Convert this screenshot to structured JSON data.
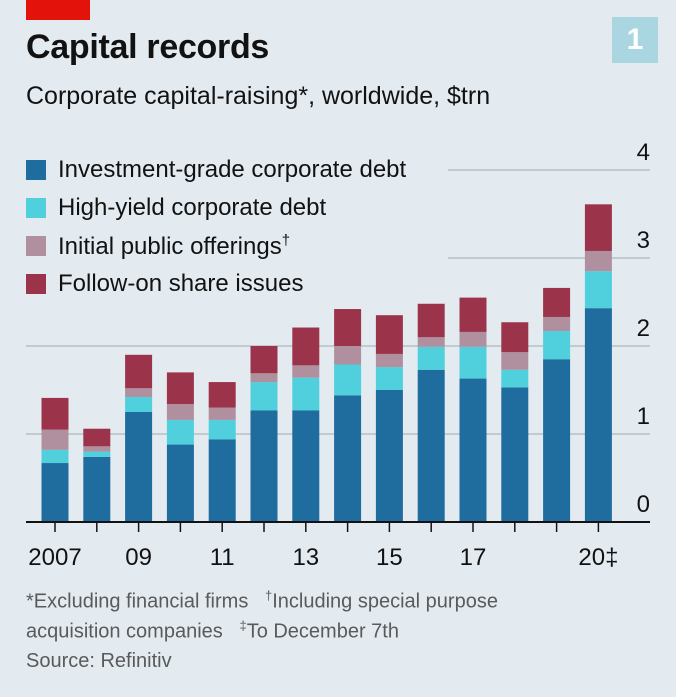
{
  "header": {
    "title": "Capital records",
    "subtitle": "Corporate capital-raising*, worldwide, $trn",
    "badge": "1"
  },
  "legend": [
    {
      "label": "Investment-grade corporate debt",
      "dagger": ""
    },
    {
      "label": "High-yield corporate debt",
      "dagger": ""
    },
    {
      "label": "Initial public offerings",
      "dagger": "†"
    },
    {
      "label": "Follow-on share issues",
      "dagger": ""
    }
  ],
  "footnotes": {
    "star_note": "*Excluding financial firms",
    "dagger_mark": "†",
    "dagger_note_a": "Including special purpose",
    "dagger_note_b": "acquisition companies",
    "ddagger_mark": "‡",
    "ddagger_note": "To December 7th",
    "source": "Source: Refinitiv"
  },
  "chart_data": {
    "type": "bar",
    "stacked": true,
    "categories": [
      "2007",
      "2008",
      "2009",
      "2010",
      "2011",
      "2012",
      "2013",
      "2014",
      "2015",
      "2016",
      "2017",
      "2018",
      "2019",
      "2020"
    ],
    "x_tick_labels": [
      "2007",
      "",
      "09",
      "",
      "11",
      "",
      "13",
      "",
      "15",
      "",
      "17",
      "",
      "",
      "20‡"
    ],
    "y_ticks": [
      0,
      1,
      2,
      3,
      4
    ],
    "ylim": [
      0,
      4.2
    ],
    "colors": [
      "#1f6d9f",
      "#4fd0dc",
      "#b0909e",
      "#9b344a"
    ],
    "series": [
      {
        "name": "Investment-grade corporate debt",
        "values": [
          0.67,
          0.74,
          1.25,
          0.88,
          0.94,
          1.27,
          1.27,
          1.44,
          1.5,
          1.73,
          1.63,
          1.53,
          1.85,
          2.43
        ]
      },
      {
        "name": "High-yield corporate debt",
        "values": [
          0.15,
          0.06,
          0.17,
          0.28,
          0.22,
          0.32,
          0.37,
          0.35,
          0.26,
          0.26,
          0.36,
          0.2,
          0.32,
          0.42
        ]
      },
      {
        "name": "Initial public offerings",
        "values": [
          0.23,
          0.06,
          0.1,
          0.18,
          0.14,
          0.1,
          0.14,
          0.21,
          0.15,
          0.11,
          0.17,
          0.2,
          0.16,
          0.23
        ]
      },
      {
        "name": "Follow-on share issues",
        "values": [
          0.36,
          0.2,
          0.38,
          0.36,
          0.29,
          0.31,
          0.43,
          0.42,
          0.44,
          0.38,
          0.39,
          0.34,
          0.33,
          0.53
        ]
      }
    ]
  }
}
